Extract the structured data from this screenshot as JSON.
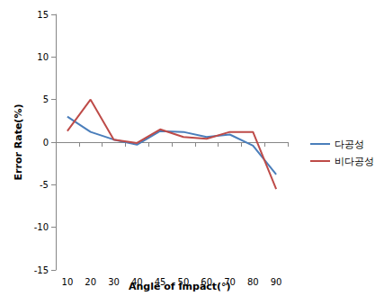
{
  "chart_data": {
    "type": "line",
    "x_label": "Angle of Impact(°)",
    "y_label": "Error Rate(%)",
    "categories": [
      "10",
      "20",
      "30",
      "40",
      "45",
      "50",
      "60",
      "70",
      "80",
      "90"
    ],
    "series": [
      {
        "name": "다공성",
        "color": "#4a7ebb",
        "values": [
          3.0,
          1.2,
          0.3,
          -0.3,
          1.3,
          1.2,
          0.6,
          0.9,
          -0.4,
          -3.8
        ]
      },
      {
        "name": "비다공성",
        "color": "#be4b48",
        "values": [
          1.3,
          5.0,
          0.3,
          -0.1,
          1.5,
          0.6,
          0.4,
          1.2,
          1.2,
          -5.5
        ]
      }
    ],
    "ylim": [
      -15,
      15
    ],
    "yticks": [
      -15,
      -10,
      -5,
      0,
      5,
      10,
      15
    ],
    "grid": false,
    "legend": "right"
  }
}
